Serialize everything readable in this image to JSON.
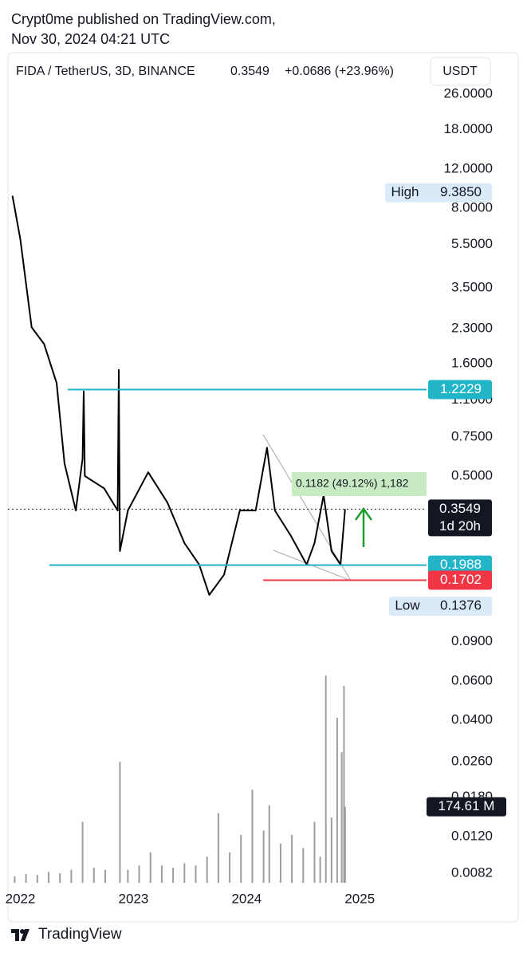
{
  "header": {
    "author_line": "Crypt0me published on TradingView.com,",
    "date_line": "Nov 30, 2024 04:21 UTC"
  },
  "chart_data": {
    "type": "line",
    "log_scale": true,
    "symbol": "FIDA / TetherUS, 3D, BINANCE",
    "last": "0.3549",
    "change": "+0.0686 (+23.96%)",
    "currency": "USDT",
    "price": {
      "color": "#000000",
      "x": [
        2021.93,
        2022.0,
        2022.1,
        2022.21,
        2022.32,
        2022.39,
        2022.49,
        2022.55,
        2022.56,
        2022.57,
        2022.74,
        2022.86,
        2022.87,
        2022.88,
        2022.95,
        2023.13,
        2023.3,
        2023.45,
        2023.58,
        2023.67,
        2023.8,
        2023.94,
        2024.08,
        2024.18,
        2024.25,
        2024.39,
        2024.53,
        2024.6,
        2024.68,
        2024.75,
        2024.83,
        2024.87
      ],
      "values": [
        9.1,
        5.8,
        2.33,
        1.96,
        1.31,
        0.57,
        0.35,
        0.6,
        1.2,
        0.5,
        0.44,
        0.35,
        1.5,
        0.23,
        0.35,
        0.52,
        0.38,
        0.25,
        0.2,
        0.146,
        0.18,
        0.35,
        0.35,
        0.67,
        0.35,
        0.27,
        0.2,
        0.25,
        0.41,
        0.23,
        0.2,
        0.3549
      ]
    },
    "volume": {
      "color": "#9e9e9e",
      "ylim": [
        0,
        520
      ],
      "last_label": "174.61 M",
      "x": [
        2021.95,
        2022.05,
        2022.15,
        2022.25,
        2022.35,
        2022.45,
        2022.55,
        2022.65,
        2022.75,
        2022.88,
        2022.95,
        2023.05,
        2023.15,
        2023.25,
        2023.35,
        2023.45,
        2023.55,
        2023.65,
        2023.75,
        2023.85,
        2023.95,
        2024.05,
        2024.15,
        2024.2,
        2024.3,
        2024.4,
        2024.5,
        2024.6,
        2024.65,
        2024.7,
        2024.75,
        2024.8,
        2024.84,
        2024.86,
        2024.87
      ],
      "values": [
        15,
        20,
        18,
        25,
        22,
        30,
        140,
        35,
        30,
        278,
        30,
        40,
        70,
        40,
        35,
        45,
        40,
        60,
        160,
        70,
        110,
        214,
        120,
        178,
        90,
        110,
        80,
        140,
        60,
        476,
        150,
        379,
        300,
        452,
        174.61
      ]
    },
    "xlim": [
      2021.82,
      2025.59
    ],
    "xticks": [
      2022,
      2023,
      2024,
      2025
    ],
    "ylim": [
      0.00724,
      38.7
    ],
    "yticks": [
      {
        "value": 26,
        "label": "26.0000"
      },
      {
        "value": 18,
        "label": "18.0000"
      },
      {
        "value": 12,
        "label": "12.0000"
      },
      {
        "value": 8,
        "label": "8.0000"
      },
      {
        "value": 5.5,
        "label": "5.5000"
      },
      {
        "value": 3.5,
        "label": "3.5000"
      },
      {
        "value": 2.3,
        "label": "2.3000"
      },
      {
        "value": 1.6,
        "label": "1.6000"
      },
      {
        "value": 1.1,
        "label": "1.1000"
      },
      {
        "value": 0.75,
        "label": "0.7500"
      },
      {
        "value": 0.5,
        "label": "0.5000"
      },
      {
        "value": 0.09,
        "label": "0.0900"
      },
      {
        "value": 0.06,
        "label": "0.0600"
      },
      {
        "value": 0.04,
        "label": "0.0400"
      },
      {
        "value": 0.026,
        "label": "0.0260"
      },
      {
        "value": 0.018,
        "label": "0.0180"
      },
      {
        "value": 0.012,
        "label": "0.0120"
      },
      {
        "value": 0.0082,
        "label": "0.0082"
      }
    ],
    "levels": [
      {
        "value": 1.2229,
        "color": "#22b5c8"
      },
      {
        "value": 0.1988,
        "color": "#22b5c8"
      },
      {
        "value": 0.1702,
        "color": "#f23645"
      }
    ],
    "current": {
      "value": 0.3549,
      "countdown": "1d 20h"
    },
    "high": {
      "name": "High",
      "value": 9.385,
      "label": "9.3850"
    },
    "low": {
      "name": "Low",
      "value": 0.1376
    },
    "measure": {
      "text": "0.1182 (49.12%) 1,182"
    },
    "brand": "TradingView"
  }
}
